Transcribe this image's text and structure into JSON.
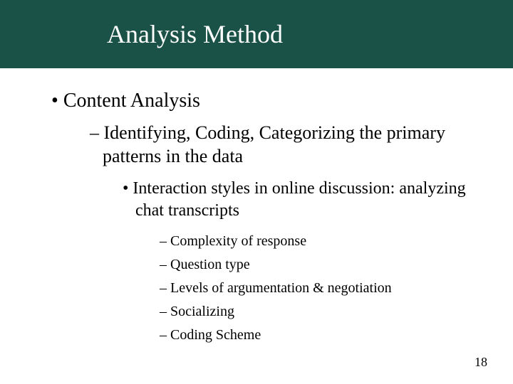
{
  "slide": {
    "title": "Analysis Method",
    "page_number": "18",
    "title_bar_color": "#1a5248",
    "title_text_color": "#ffffff",
    "background_color": "#ffffff",
    "body_text_color": "#000000",
    "font_family": "Times New Roman",
    "title_fontsize": 36,
    "l1_fontsize": 28,
    "l2_fontsize": 26,
    "l3_fontsize": 24,
    "l4_fontsize": 20,
    "bullets": {
      "l1_0": "Content Analysis",
      "l2_0": "Identifying, Coding, Categorizing the primary patterns in the data",
      "l3_0": "Interaction styles in online discussion: analyzing chat transcripts",
      "l4_0": "Complexity of response",
      "l4_1": "Question type",
      "l4_2": "Levels of argumentation & negotiation",
      "l4_3": "Socializing",
      "l4_4": "Coding Scheme"
    }
  }
}
